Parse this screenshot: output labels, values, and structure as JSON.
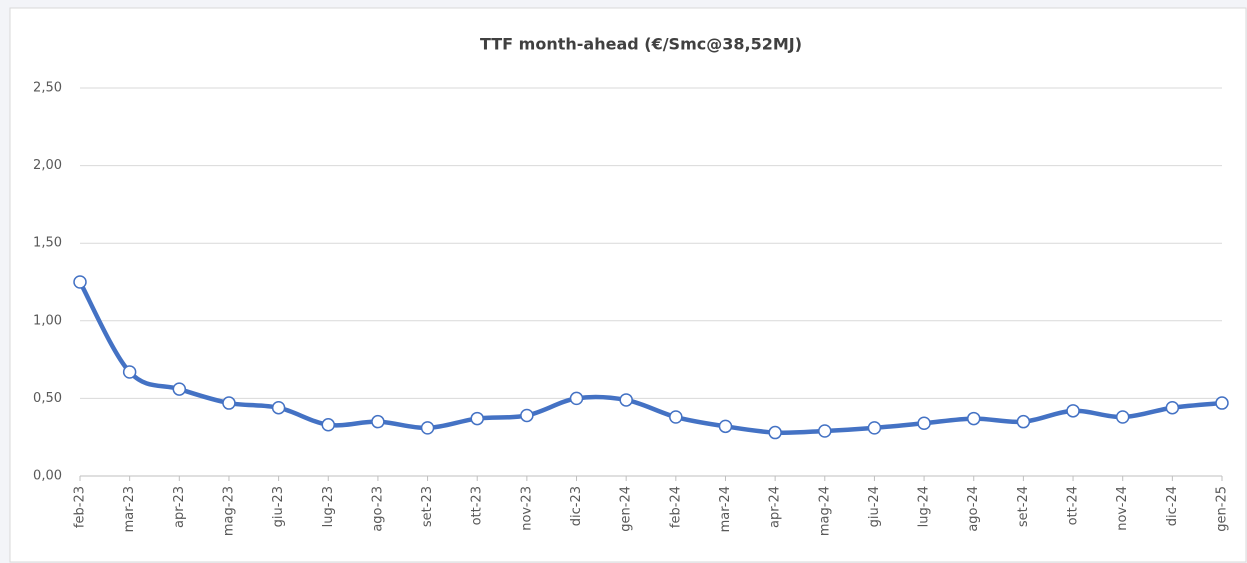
{
  "chart_data": {
    "type": "line",
    "title": "TTF month-ahead (€/Smc@38,52MJ)",
    "categories": [
      "feb-23",
      "mar-23",
      "apr-23",
      "mag-23",
      "giu-23",
      "lug-23",
      "ago-23",
      "set-23",
      "ott-23",
      "nov-23",
      "dic-23",
      "gen-24",
      "feb-24",
      "mar-24",
      "apr-24",
      "mag-24",
      "giu-24",
      "lug-24",
      "ago-24",
      "set-24",
      "ott-24",
      "nov-24",
      "dic-24",
      "gen-25"
    ],
    "series": [
      {
        "name": "TTF month-ahead",
        "color": "#4472c4",
        "values": [
          1.25,
          0.67,
          0.56,
          0.47,
          0.44,
          0.33,
          0.35,
          0.31,
          0.37,
          0.39,
          0.5,
          0.49,
          0.38,
          0.32,
          0.28,
          0.29,
          0.31,
          0.34,
          0.37,
          0.35,
          0.42,
          0.38,
          0.44,
          0.47
        ]
      }
    ],
    "ylim": [
      0,
      2.5
    ],
    "yticks": [
      {
        "value": 0,
        "label": "0,00"
      },
      {
        "value": 0.5,
        "label": "0,50"
      },
      {
        "value": 1,
        "label": "1,00"
      },
      {
        "value": 1.5,
        "label": "1,50"
      },
      {
        "value": 2,
        "label": "2,00"
      },
      {
        "value": 2.5,
        "label": "2,50"
      }
    ],
    "grid": true,
    "smooth": true,
    "markers": true
  }
}
